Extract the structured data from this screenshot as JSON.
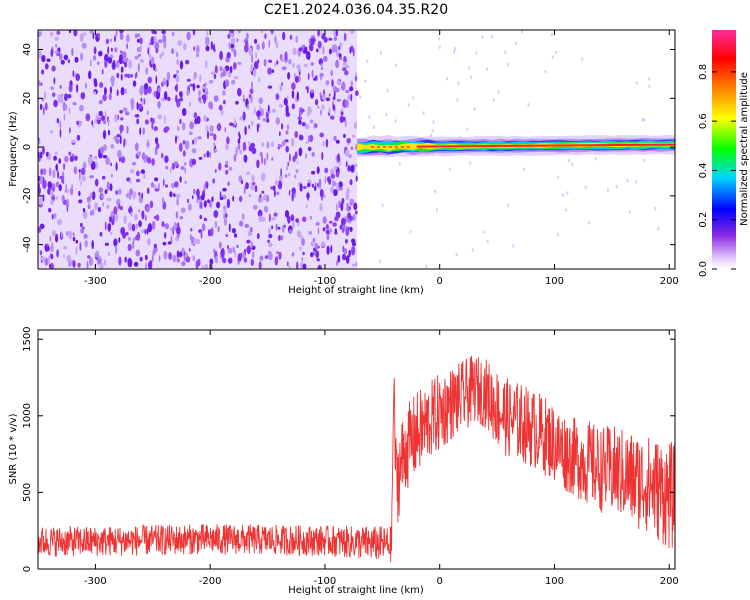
{
  "page": {
    "title": "C2E1.2024.036.04.35.R20"
  },
  "colors": {
    "noise_purple": "#7b2cf0",
    "noise_light": "#d8c0f8",
    "trace_red": "#ee3333",
    "colorbar_stops": [
      "#ffffff",
      "#e8d0ff",
      "#8a2be2",
      "#0000ff",
      "#00d5ff",
      "#00ff00",
      "#ffff00",
      "#ff8800",
      "#ff0000",
      "#ff2fa0"
    ]
  },
  "chart_data": [
    {
      "type": "heatmap",
      "title": "C2E1.2024.036.04.35.R20",
      "xlabel": "Height of straight line (km)",
      "ylabel": "Frequency (Hz)",
      "xlim": [
        -350,
        205
      ],
      "ylim": [
        -50,
        48
      ],
      "x_ticks": [
        -300,
        -200,
        -100,
        0,
        100,
        200
      ],
      "y_ticks": [
        -40,
        -20,
        0,
        20,
        40
      ],
      "x_tick_labels": [
        "-300",
        "-200",
        "-100",
        "0",
        "100",
        "200"
      ],
      "y_tick_labels": [
        "-40",
        "-20",
        "0",
        "20",
        "40"
      ],
      "noise_region_x": [
        -350,
        -72
      ],
      "signal_band": {
        "x": [
          -72,
          205
        ],
        "center_frequency": 0,
        "center_frequency_at_end": 1,
        "peak_amplitude": 0.95
      },
      "colorbar": {
        "label": "Normalized spectral amplitude",
        "range": [
          0.0,
          0.97
        ],
        "ticks": [
          0.0,
          0.2,
          0.4,
          0.6,
          0.8
        ],
        "tick_labels": [
          "0.0",
          "0.2",
          "0.4",
          "0.6",
          "0.8"
        ]
      }
    },
    {
      "type": "line",
      "xlabel": "Height of straight line (km)",
      "ylabel": "SNR (10 * v/v)",
      "xlim": [
        -350,
        205
      ],
      "ylim": [
        0,
        1560
      ],
      "x_ticks": [
        -300,
        -200,
        -100,
        0,
        100,
        200
      ],
      "y_ticks": [
        0,
        500,
        1000,
        1500
      ],
      "x_tick_labels": [
        "-300",
        "-200",
        "-100",
        "0",
        "100",
        "200"
      ],
      "y_tick_labels": [
        "0",
        "500",
        "1000",
        "1500"
      ],
      "series": [
        {
          "x": [
            -350,
            -300,
            -200,
            -100,
            -42,
            -40,
            -38,
            -35,
            -30,
            -20,
            -10,
            0,
            10,
            20,
            30,
            40,
            50,
            60,
            70,
            80,
            90,
            100,
            110,
            120,
            130,
            140,
            150,
            160,
            170,
            180,
            190,
            200,
            205
          ],
          "y": [
            180,
            180,
            195,
            185,
            160,
            1200,
            550,
            650,
            780,
            880,
            960,
            1020,
            1080,
            1120,
            1180,
            1150,
            1050,
            980,
            960,
            920,
            880,
            820,
            760,
            720,
            690,
            650,
            640,
            620,
            580,
            560,
            520,
            480,
            460
          ],
          "band_halfwidth": [
            100,
            100,
            100,
            100,
            120,
            200,
            300,
            300,
            280,
            280,
            260,
            260,
            240,
            240,
            220,
            230,
            260,
            260,
            260,
            260,
            260,
            260,
            260,
            260,
            280,
            280,
            300,
            300,
            320,
            320,
            340,
            360,
            360
          ]
        }
      ]
    }
  ]
}
